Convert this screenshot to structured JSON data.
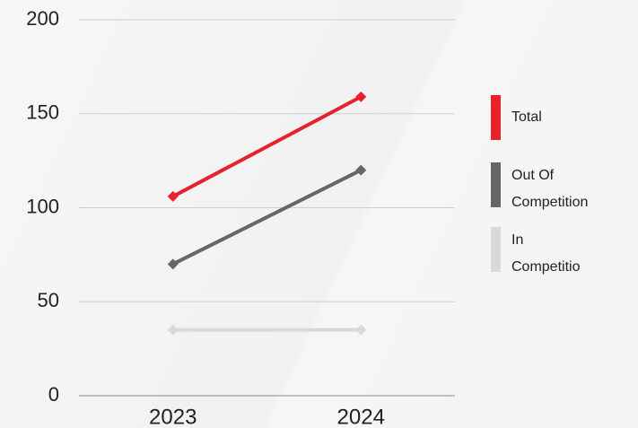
{
  "chart_data": {
    "type": "line",
    "categories": [
      "2023",
      "2024"
    ],
    "series": [
      {
        "name": "Total",
        "color": "#e8222b",
        "values": [
          106,
          159
        ]
      },
      {
        "name": "Out Of Competition",
        "color": "#666666",
        "values": [
          70,
          120
        ]
      },
      {
        "name": "In Competitio",
        "color": "#d9d9d9",
        "values": [
          35,
          35
        ]
      }
    ],
    "ylim": [
      0,
      200
    ],
    "yticks": [
      0,
      50,
      100,
      150,
      200
    ],
    "grid": true,
    "legend": "right"
  }
}
